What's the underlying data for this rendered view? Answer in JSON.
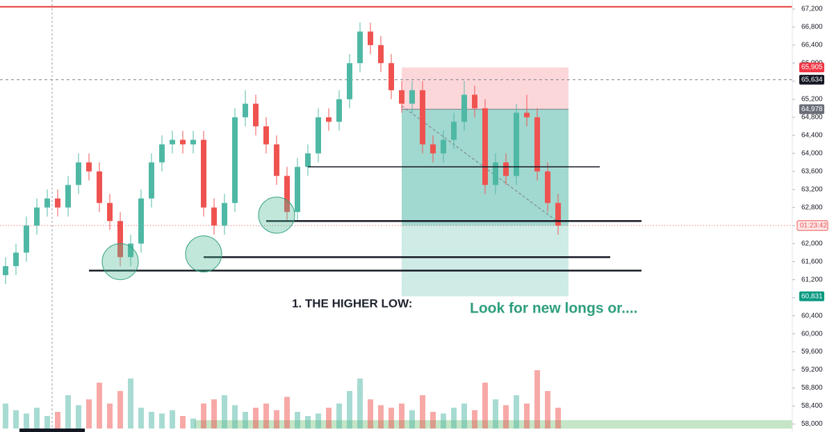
{
  "chart_data": {
    "type": "candlestick",
    "ylim": [
      57900,
      67400
    ],
    "yticks": [
      {
        "value": 58000,
        "label": "58,000"
      },
      {
        "value": 58400,
        "label": "58,400"
      },
      {
        "value": 58800,
        "label": "58,800"
      },
      {
        "value": 59200,
        "label": "59,200"
      },
      {
        "value": 59600,
        "label": "59,600"
      },
      {
        "value": 60000,
        "label": "60,000"
      },
      {
        "value": 60400,
        "label": "60,400"
      },
      {
        "value": 60800,
        "label": "60,800"
      },
      {
        "value": 61200,
        "label": "61,200"
      },
      {
        "value": 61600,
        "label": "61,600"
      },
      {
        "value": 62000,
        "label": "62,000"
      },
      {
        "value": 62400,
        "label": "62,400"
      },
      {
        "value": 62800,
        "label": "62,800"
      },
      {
        "value": 63200,
        "label": "63,200"
      },
      {
        "value": 63600,
        "label": "63,600"
      },
      {
        "value": 64000,
        "label": "64,000"
      },
      {
        "value": 64400,
        "label": "64,400"
      },
      {
        "value": 64800,
        "label": "64,800"
      },
      {
        "value": 65200,
        "label": "65,200"
      },
      {
        "value": 65600,
        "label": "65,600"
      },
      {
        "value": 66000,
        "label": "66,000"
      },
      {
        "value": 66400,
        "label": "66,400"
      },
      {
        "value": 66800,
        "label": "66,800"
      },
      {
        "value": 67200,
        "label": "67,200"
      }
    ],
    "up_color": "#4fb8a5",
    "down_color": "#ef5350",
    "open": [
      61300,
      61500,
      61800,
      62400,
      62800,
      63000,
      62800,
      63300,
      63800,
      63600,
      62900,
      62500,
      61700,
      62000,
      63000,
      63800,
      64200,
      64300,
      64200,
      64300,
      62800,
      62400,
      62900,
      64800,
      65100,
      64600,
      64200,
      63500,
      62700,
      63700,
      64000,
      64800,
      64700,
      65200,
      66000,
      66700,
      66400,
      66000,
      65400,
      65100,
      65400,
      64200,
      64000,
      64300,
      64700,
      65300,
      65000,
      63300,
      63800,
      63500,
      64900,
      64800,
      63600,
      62900
    ],
    "high": [
      61700,
      62000,
      62600,
      63000,
      63200,
      63200,
      63500,
      64000,
      64000,
      63800,
      63100,
      62700,
      62200,
      63200,
      64000,
      64400,
      64500,
      64500,
      64500,
      64500,
      63000,
      63100,
      65000,
      65400,
      65300,
      64800,
      64400,
      63700,
      63900,
      64200,
      65000,
      65000,
      65400,
      66200,
      66900,
      66900,
      66600,
      66200,
      65600,
      65600,
      65600,
      64400,
      64500,
      64900,
      65600,
      65500,
      65200,
      64000,
      64000,
      65100,
      65300,
      65000,
      63800,
      63100
    ],
    "low": [
      61100,
      61300,
      61600,
      62200,
      62600,
      62600,
      62600,
      63100,
      63400,
      62700,
      62300,
      61500,
      61500,
      61800,
      62800,
      63600,
      64000,
      64000,
      64000,
      62600,
      62200,
      62200,
      62700,
      64600,
      64400,
      64000,
      63300,
      62500,
      62500,
      63500,
      63800,
      64500,
      64500,
      65000,
      65800,
      66200,
      65800,
      65200,
      64900,
      64900,
      64000,
      63800,
      63800,
      64100,
      64500,
      64800,
      63100,
      63100,
      63300,
      63300,
      64600,
      63400,
      62700,
      62200
    ],
    "close": [
      61500,
      61800,
      62400,
      62800,
      63000,
      62800,
      63300,
      63800,
      63600,
      62900,
      62500,
      61700,
      62000,
      63000,
      63800,
      64200,
      64300,
      64200,
      64300,
      62800,
      62400,
      62900,
      64800,
      65100,
      64600,
      64200,
      63500,
      62700,
      63700,
      64000,
      64800,
      64700,
      65200,
      66000,
      66700,
      66400,
      66000,
      65400,
      65100,
      65400,
      64200,
      64000,
      64300,
      64700,
      65300,
      65000,
      63300,
      63800,
      63500,
      64900,
      64800,
      63600,
      62900,
      62400
    ],
    "volume": [
      30,
      22,
      18,
      25,
      15,
      20,
      40,
      28,
      35,
      55,
      30,
      45,
      60,
      25,
      20,
      18,
      22,
      15,
      12,
      30,
      35,
      40,
      28,
      20,
      25,
      30,
      22,
      38,
      20,
      15,
      18,
      25,
      30,
      45,
      60,
      35,
      28,
      25,
      30,
      22,
      40,
      20,
      18,
      25,
      30,
      22,
      55,
      35,
      28,
      40,
      30,
      70,
      45,
      25
    ],
    "resistance": 67250,
    "lines": [
      {
        "from": 29,
        "to": 57,
        "price": 63700
      },
      {
        "from": 25,
        "to": 61,
        "price": 62500
      },
      {
        "from": 19,
        "to": 58,
        "price": 61700
      },
      {
        "from": 8,
        "to": 61,
        "price": 61400
      }
    ],
    "circles": [
      {
        "index": 11,
        "price": 61600
      },
      {
        "index": 19,
        "price": 61770
      },
      {
        "index": 26,
        "price": 62630
      }
    ],
    "position": {
      "from": 38,
      "to": 54,
      "entry": 64978,
      "stop": 65905,
      "target": 60831
    },
    "price_labels": [
      {
        "value": 65905,
        "label": "65,905",
        "color": "#f23645"
      },
      {
        "value": 65634,
        "label": "65,634",
        "color": "#131722"
      },
      {
        "value": 64978,
        "label": "64,978",
        "color": "#6a6d78"
      },
      {
        "value": 60831,
        "label": "60,831",
        "color": "#089981"
      }
    ],
    "countdown": "01:23:42",
    "annotations": [
      "1.  THE HIGHER LOW:",
      "Look for new longs or...."
    ]
  }
}
